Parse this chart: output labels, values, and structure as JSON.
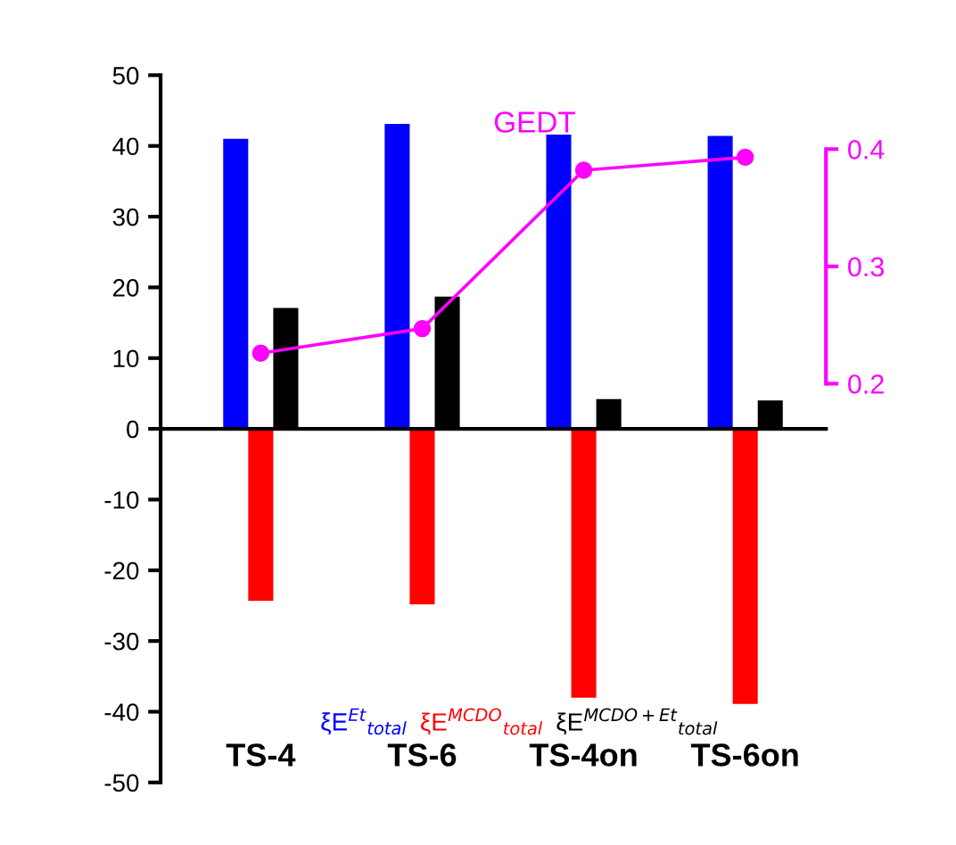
{
  "chart_data": {
    "type": "bar",
    "categories": [
      "TS-4",
      "TS-6",
      "TS-4on",
      "TS-6on"
    ],
    "series": [
      {
        "name": "ξE$^{Et}$$_{total}$",
        "color": "#0000ff",
        "values": [
          41,
          43.1,
          41.6,
          41.4
        ]
      },
      {
        "name": "ξE$^{MCDO}$$_{total}$",
        "color": "#ff0000",
        "values": [
          -24.3,
          -24.8,
          -38,
          -38.9
        ]
      },
      {
        "name": "ξE$^{MCDO+Et}$$_{total}$",
        "color": "#000000",
        "values": [
          17.1,
          18.7,
          4.2,
          4.0
        ]
      },
      {
        "name": "GEDT",
        "type": "line",
        "axis": "y2",
        "color": "#ff00ff",
        "marker": "circle",
        "values": [
          0.226,
          0.247,
          0.382,
          0.393
        ]
      }
    ],
    "ylim": [
      -50,
      50
    ],
    "yticks": [
      -50,
      -40,
      -30,
      -20,
      -10,
      0,
      10,
      20,
      30,
      40,
      50
    ],
    "y2lim": [
      -0.14,
      0.463
    ],
    "y2ticks": [
      0.2,
      0.3,
      0.4
    ],
    "legend": false
  }
}
